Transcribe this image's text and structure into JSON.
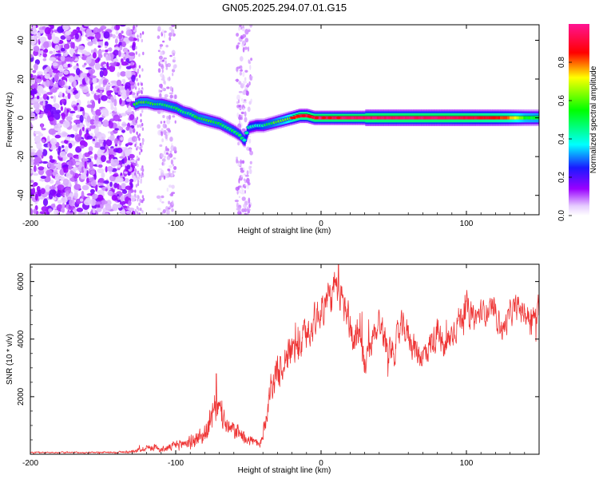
{
  "title": "GN05.2025.294.07.01.G15",
  "chart_data": [
    {
      "type": "heatmap",
      "xlabel": "Height of straight line (km)",
      "ylabel": "Frequency (Hz)",
      "xlim": [
        -200,
        150
      ],
      "ylim": [
        -50,
        48
      ],
      "xticks": [
        -200,
        -100,
        0,
        100
      ],
      "xtick_labels": [
        "-200",
        "-100",
        "0",
        "100"
      ],
      "yticks": [
        -40,
        -20,
        0,
        20,
        40
      ],
      "ytick_labels": [
        "-40",
        "-20",
        "0",
        "20",
        "40"
      ],
      "noise_region_km": [
        -200,
        -128
      ],
      "sparse_bands_km": [
        [
          -112,
          -100
        ],
        [
          -58,
          -48
        ]
      ],
      "ridge": {
        "x": [
          -128,
          -125,
          -120,
          -115,
          -110,
          -105,
          -100,
          -95,
          -90,
          -85,
          -80,
          -75,
          -70,
          -65,
          -60,
          -56,
          -53,
          -50,
          -45,
          -40,
          -35,
          -30,
          -25,
          -20,
          -15,
          -10,
          -5,
          0,
          10,
          20,
          40,
          60,
          80,
          86,
          100,
          120,
          128,
          140,
          150
        ],
        "y": [
          7,
          8,
          8,
          7,
          7,
          6,
          5,
          3,
          2,
          0,
          -1,
          -2,
          -3,
          -5,
          -7,
          -9,
          -12,
          -5,
          -4,
          -4,
          -3,
          -2,
          -1,
          0,
          1,
          1,
          0,
          0,
          0,
          0,
          0,
          0,
          0,
          0,
          0,
          0,
          0,
          0,
          0
        ],
        "amplitude": [
          0.45,
          0.45,
          0.45,
          0.42,
          0.4,
          0.38,
          0.36,
          0.38,
          0.38,
          0.42,
          0.45,
          0.42,
          0.4,
          0.38,
          0.35,
          0.35,
          0.32,
          0.3,
          0.3,
          0.35,
          0.4,
          0.5,
          0.6,
          0.8,
          0.9,
          0.92,
          0.95,
          0.95,
          0.95,
          0.95,
          0.95,
          0.95,
          0.95,
          0.95,
          0.92,
          0.85,
          0.8,
          0.55,
          0.5
        ]
      },
      "colorbar": {
        "label": "Normalized spectral amplitude",
        "range": [
          0,
          1
        ],
        "ticks": [
          0.0,
          0.2,
          0.4,
          0.6,
          0.8
        ],
        "tick_labels": [
          "0.0",
          "0.2",
          "0.4",
          "0.6",
          "0.8"
        ]
      }
    },
    {
      "type": "line",
      "xlabel": "Height of straight line (km)",
      "ylabel": "SNR (10 * v/v)",
      "xlim": [
        -200,
        150
      ],
      "ylim": [
        0,
        6600
      ],
      "xticks": [
        -200,
        -100,
        0,
        100
      ],
      "xtick_labels": [
        "-200",
        "-100",
        "0",
        "100"
      ],
      "yticks": [
        2000,
        4000,
        6000
      ],
      "ytick_labels": [
        "2000",
        "4000",
        "6000"
      ],
      "color": "#ee3333",
      "series": [
        {
          "name": "SNR",
          "envelope": {
            "x": [
              -200,
              -180,
              -160,
              -140,
              -130,
              -122,
              -115,
              -110,
              -105,
              -100,
              -95,
              -90,
              -85,
              -80,
              -75,
              -72,
              -70,
              -67,
              -64,
              -60,
              -55,
              -50,
              -45,
              -42,
              -38,
              -35,
              -32,
              -28,
              -25,
              -20,
              -15,
              -10,
              -5,
              0,
              5,
              10,
              15,
              20,
              22,
              25,
              30,
              35,
              40,
              45,
              50,
              55,
              60,
              65,
              70,
              75,
              80,
              85,
              90,
              95,
              100,
              105,
              110,
              115,
              120,
              125,
              128,
              130,
              135,
              140,
              145,
              150
            ],
            "mean": [
              60,
              60,
              60,
              70,
              90,
              200,
              250,
              150,
              220,
              300,
              380,
              420,
              550,
              700,
              1200,
              1700,
              1500,
              1200,
              900,
              800,
              700,
              550,
              400,
              250,
              1200,
              2300,
              2700,
              2900,
              3400,
              3600,
              3800,
              4200,
              4600,
              5000,
              5400,
              5600,
              5300,
              4500,
              3900,
              4400,
              3000,
              3900,
              4700,
              3800,
              3600,
              4400,
              4200,
              3600,
              3400,
              3800,
              4200,
              3600,
              4200,
              4700,
              5100,
              4700,
              4900,
              5000,
              4900,
              4300,
              4600,
              4900,
              5100,
              4900,
              4700,
              4900
            ],
            "amplitude": [
              30,
              30,
              30,
              40,
              60,
              120,
              150,
              100,
              150,
              200,
              250,
              300,
              350,
              450,
              600,
              700,
              600,
              500,
              400,
              350,
              300,
              250,
              200,
              150,
              400,
              600,
              700,
              700,
              700,
              700,
              700,
              700,
              700,
              700,
              700,
              700,
              700,
              700,
              700,
              700,
              600,
              600,
              600,
              600,
              600,
              600,
              600,
              600,
              600,
              600,
              600,
              600,
              600,
              600,
              600,
              500,
              500,
              500,
              500,
              500,
              500,
              500,
              500,
              500,
              500,
              500
            ]
          },
          "peaks": [
            [
              12,
              6600
            ],
            [
              -28,
              3400
            ],
            [
              -72,
              2800
            ],
            [
              -120,
              300
            ]
          ]
        }
      ]
    }
  ]
}
